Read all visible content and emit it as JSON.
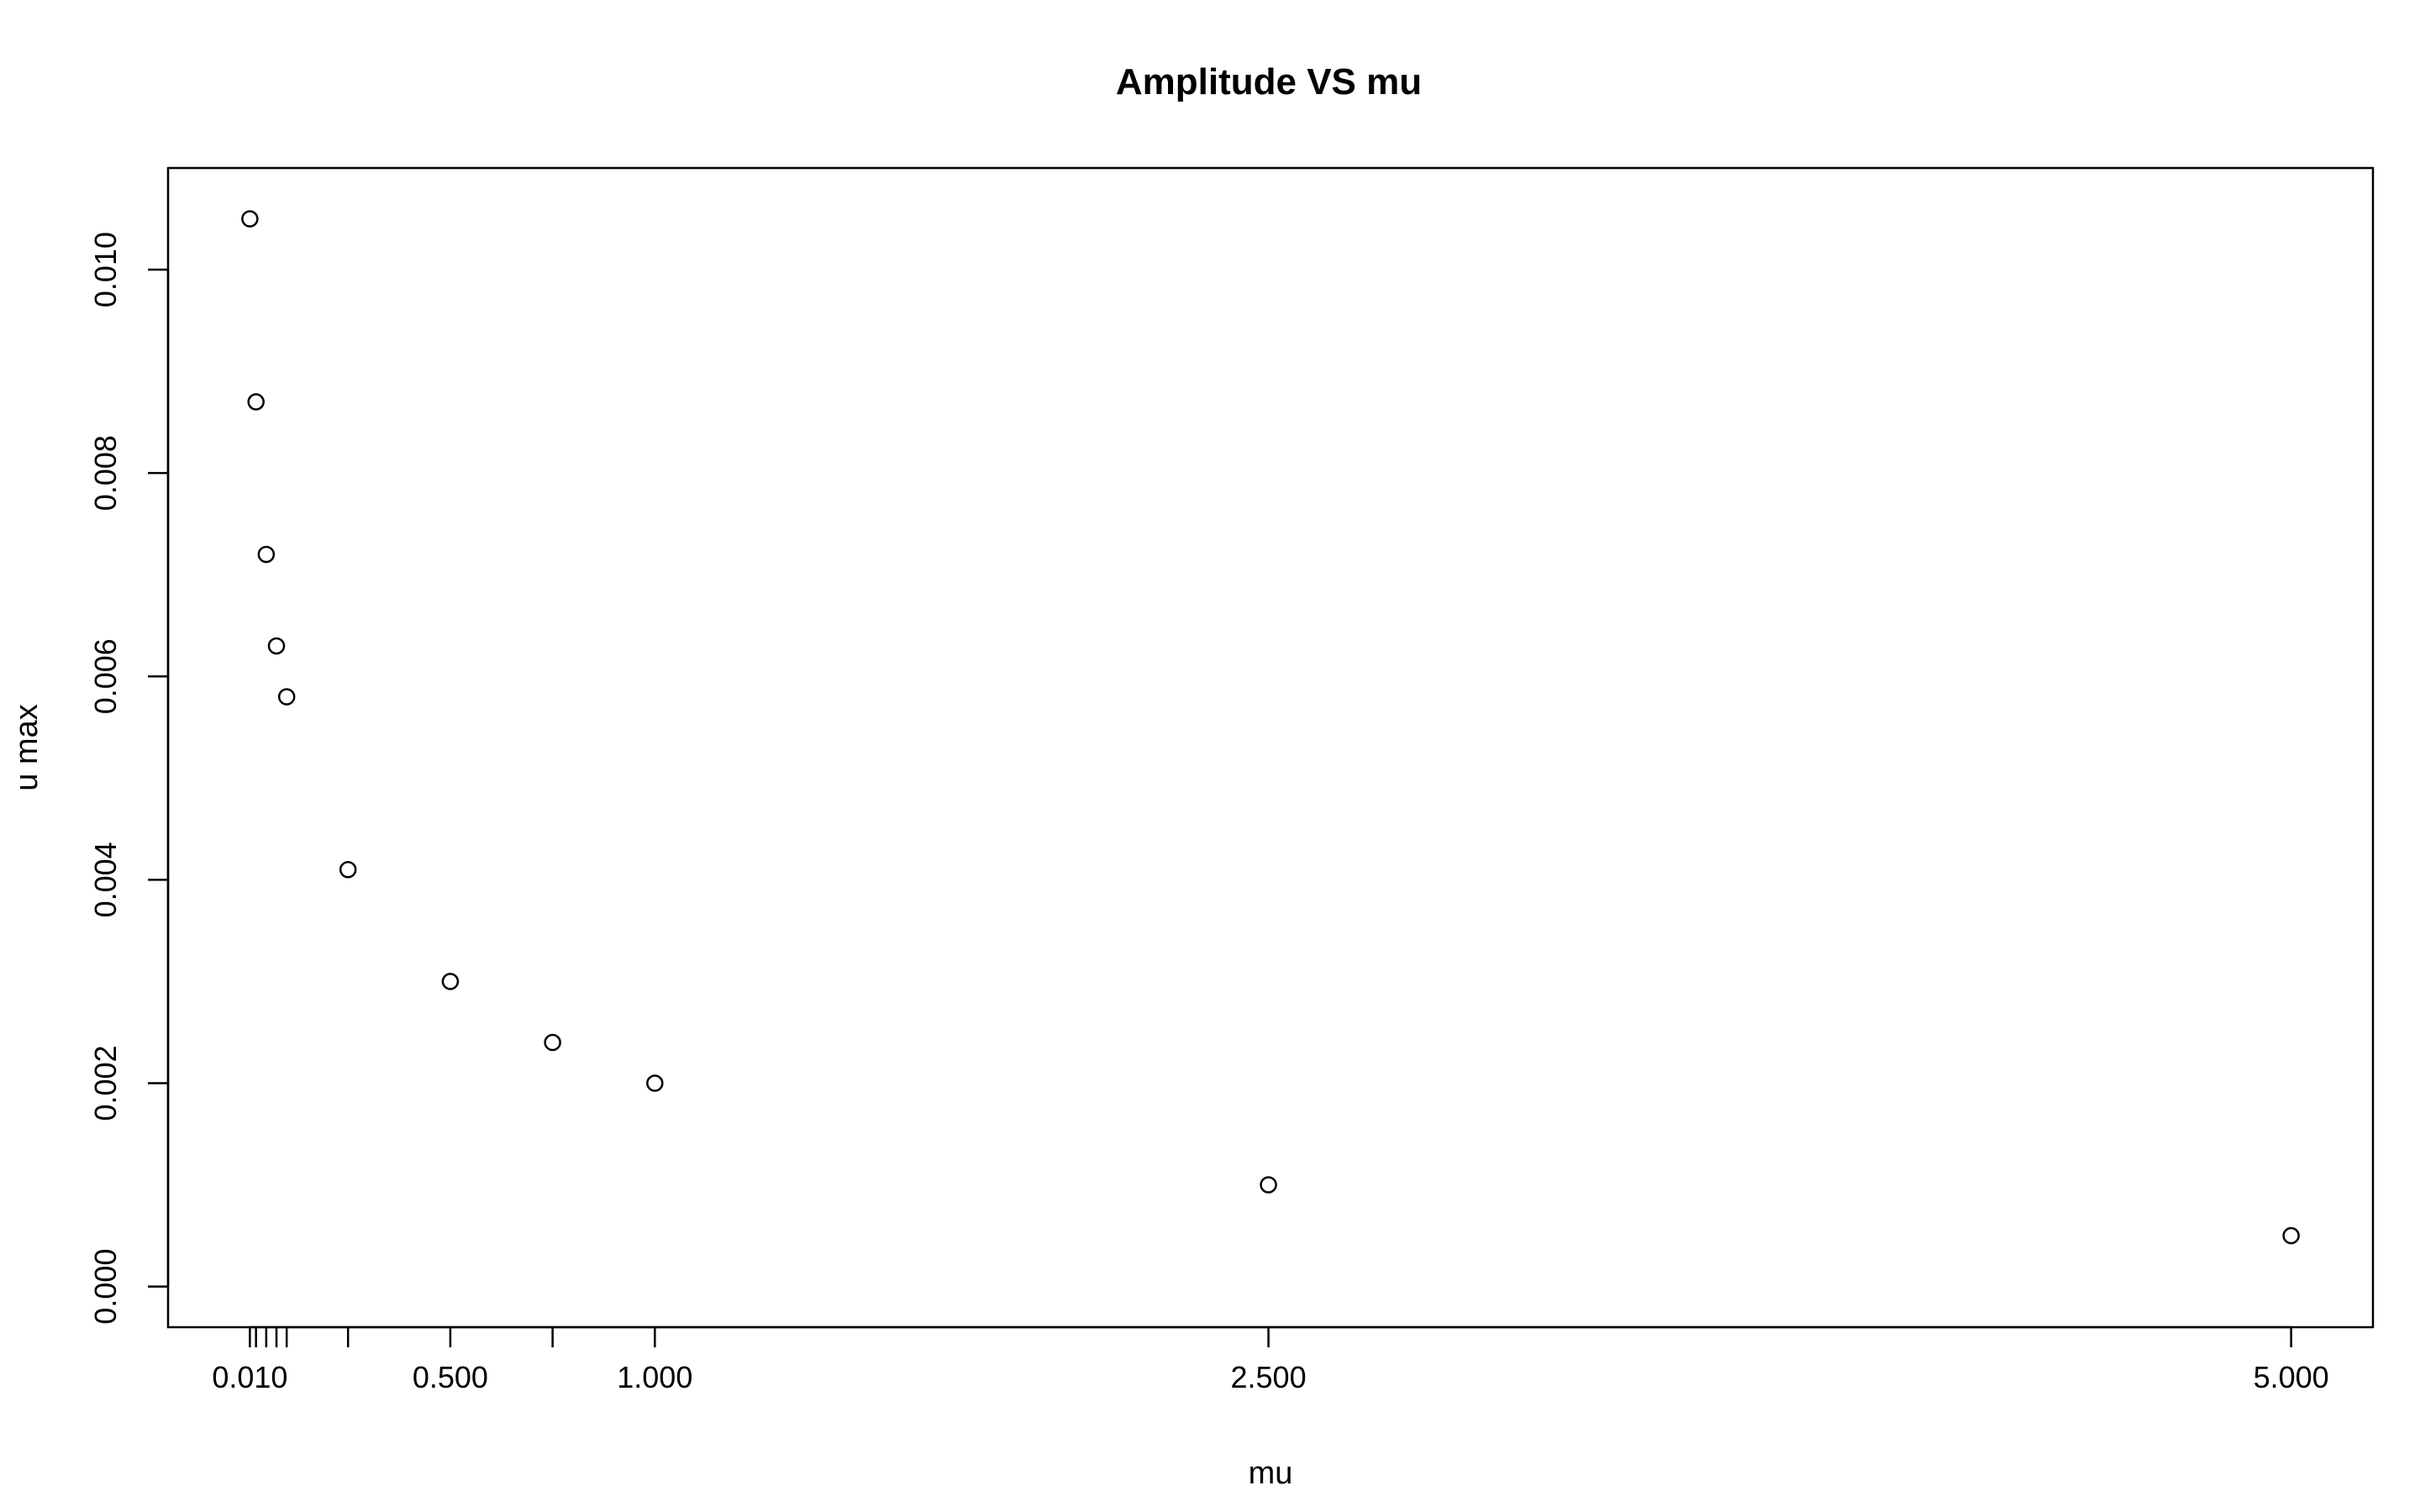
{
  "chart_data": {
    "type": "scatter",
    "title": "Amplitude VS mu",
    "xlabel": "mu",
    "ylabel": "u max",
    "x": [
      0.01,
      0.025,
      0.05,
      0.075,
      0.1,
      0.25,
      0.5,
      0.75,
      1.0,
      2.5,
      5.0
    ],
    "y": [
      0.0105,
      0.0087,
      0.0072,
      0.0063,
      0.0058,
      0.0041,
      0.003,
      0.0024,
      0.002,
      0.001,
      0.0005
    ],
    "xlim": [
      -0.19,
      5.2
    ],
    "ylim": [
      -0.0004,
      0.011
    ],
    "x_ticks": [
      0.01,
      0.025,
      0.05,
      0.075,
      0.1,
      0.25,
      0.5,
      0.75,
      1.0,
      2.5,
      5.0
    ],
    "x_tick_labels": [
      "0.010",
      "",
      "",
      "",
      "",
      "",
      "0.500",
      "",
      "1.000",
      "2.500",
      "5.000"
    ],
    "y_ticks": [
      0.0,
      0.002,
      0.004,
      0.006,
      0.008,
      0.01
    ],
    "y_tick_labels": [
      "0.000",
      "0.002",
      "0.004",
      "0.006",
      "0.008",
      "0.010"
    ],
    "marker": "open-circle",
    "grid": false,
    "legend": "none",
    "colors": {
      "points": "#000000",
      "axes": "#000000",
      "background": "#ffffff"
    }
  }
}
